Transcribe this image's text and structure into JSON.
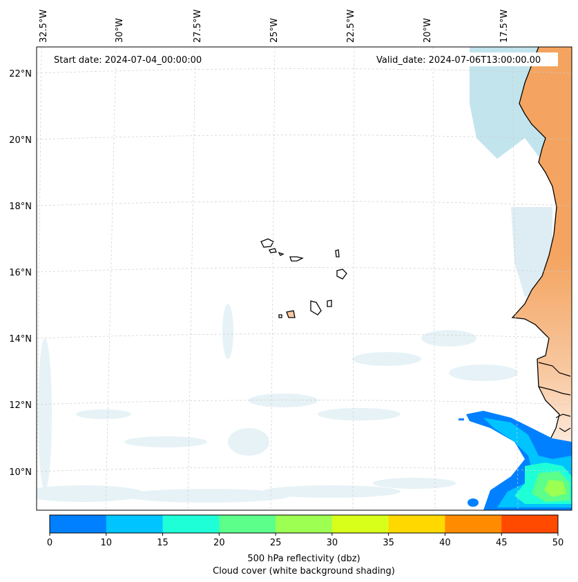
{
  "start_date": "Start date: 2024-07-04_00:00:00",
  "valid_date": "Valid_date: 2024-07-06T13:00:00.00",
  "longitude_labels": [
    "32.5°W",
    "30°W",
    "27.5°W",
    "25°W",
    "22.5°W",
    "20°W",
    "17.5°W"
  ],
  "latitude_labels": [
    "22°N",
    "20°N",
    "18°N",
    "16°N",
    "14°N",
    "12°N",
    "10°N"
  ],
  "colorbar": {
    "ticks": [
      "0",
      "10",
      "15",
      "20",
      "25",
      "30",
      "35",
      "40",
      "45",
      "50"
    ],
    "colors": [
      "#0080ff",
      "#00c4ff",
      "#1effd8",
      "#5cff8a",
      "#9cff52",
      "#d8ff1a",
      "#ffd800",
      "#ff8c00",
      "#ff4a00"
    ],
    "label_line1": "500 hPa reflectivity (dbz)",
    "label_line2": "Cloud cover (white background shading)"
  },
  "colors": {
    "land": "#f4a460",
    "cloud": "#a8d8e6",
    "coast": "#000000",
    "grid": "#cccccc"
  }
}
